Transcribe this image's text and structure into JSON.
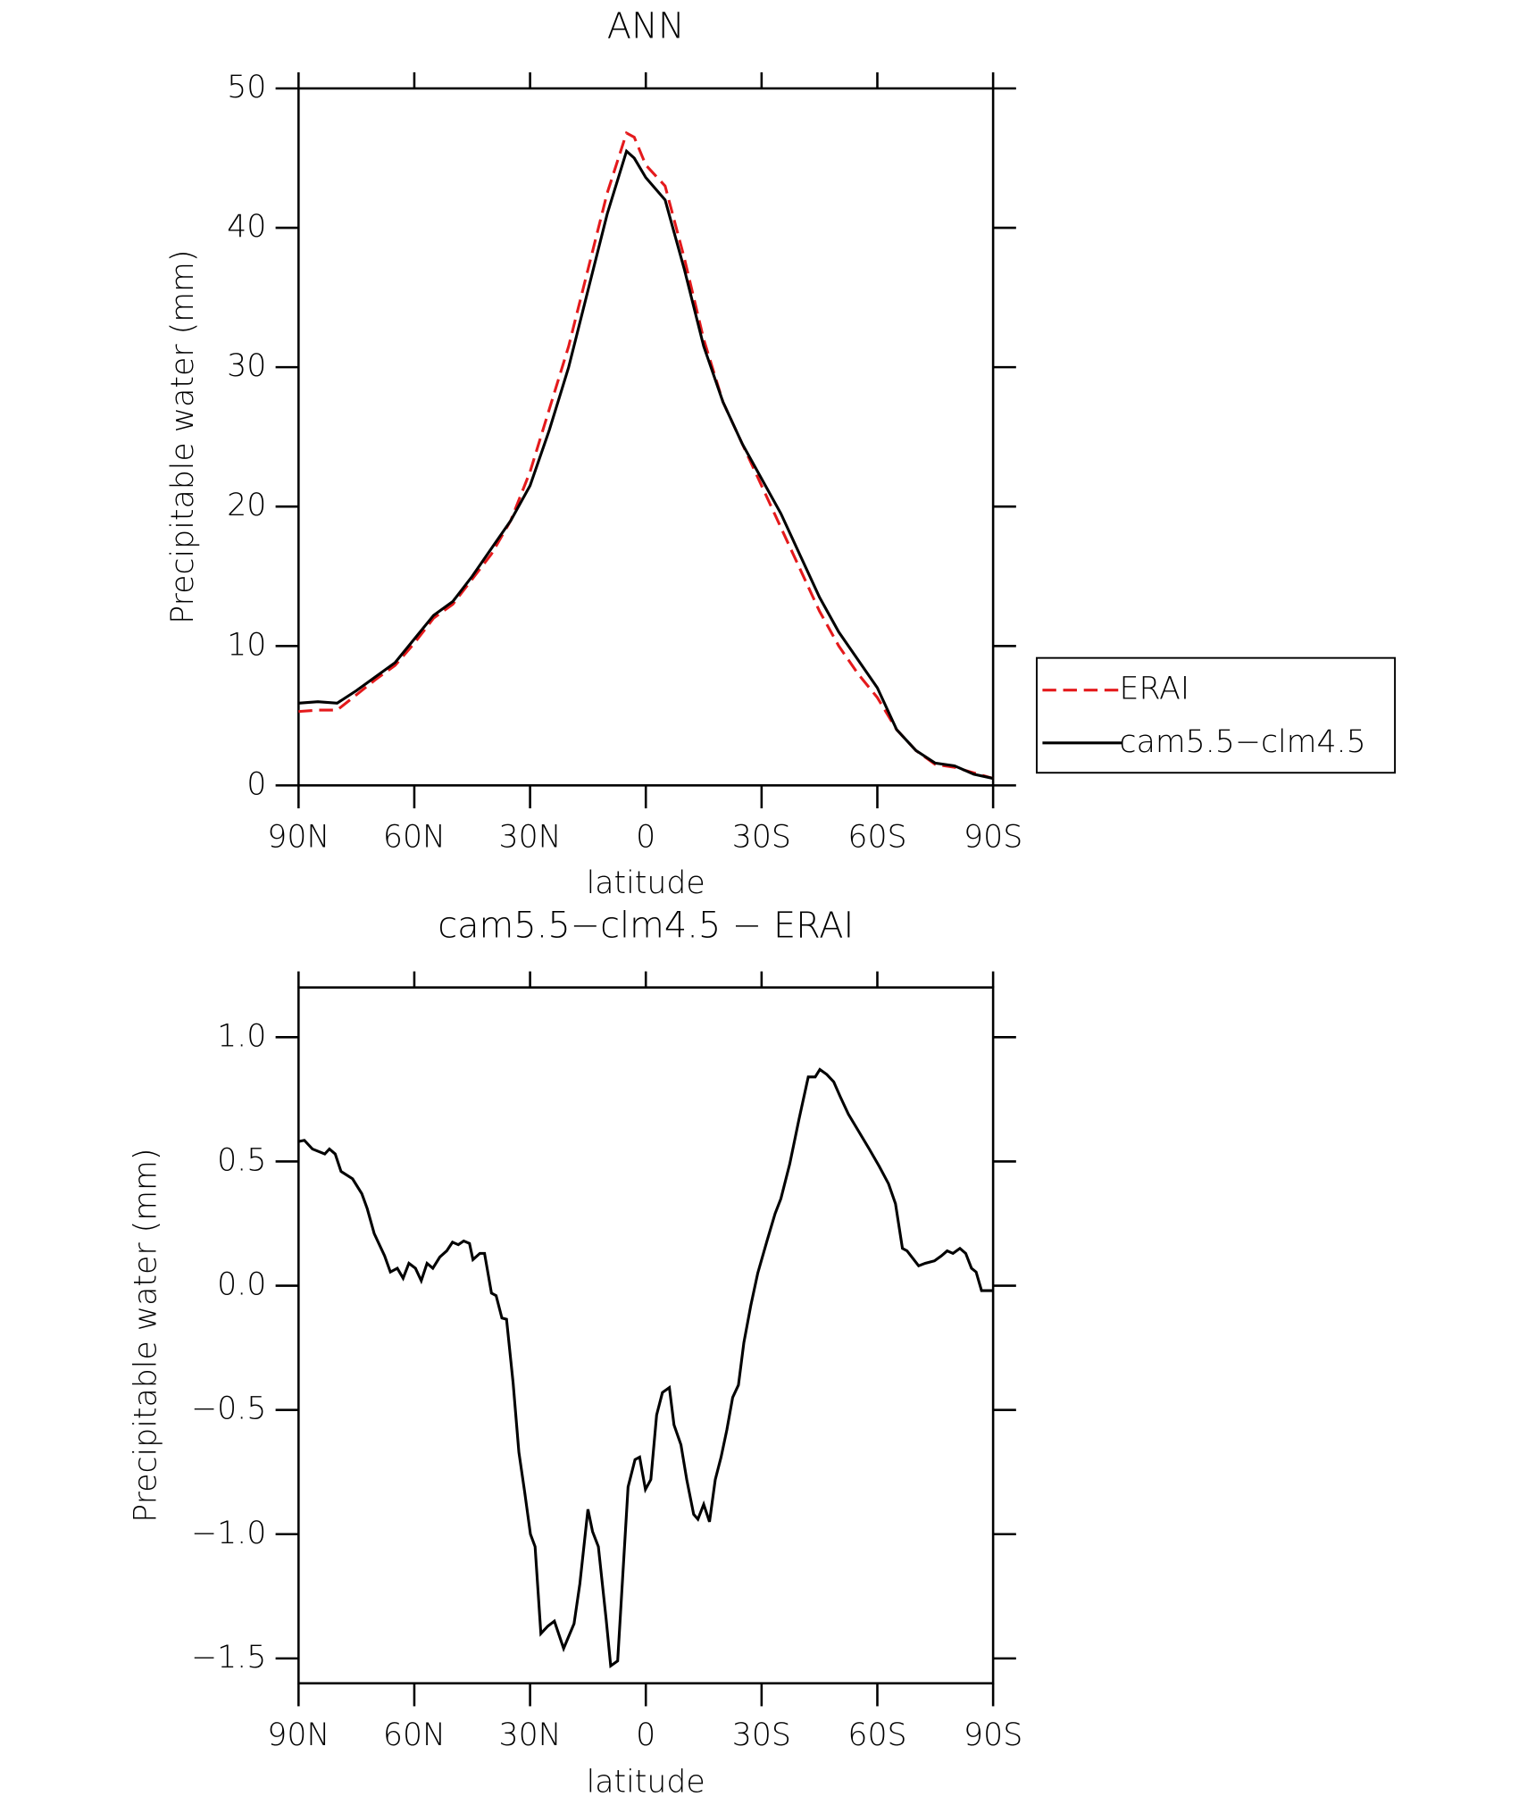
{
  "chart_data": [
    {
      "type": "line",
      "title": "ANN",
      "xlabel": "latitude",
      "ylabel": "Precipitable water (mm)",
      "x": [
        90,
        85,
        80,
        75,
        70,
        65,
        60,
        55,
        50,
        45,
        40,
        35,
        30,
        25,
        20,
        15,
        10,
        5,
        3,
        0,
        -5,
        -10,
        -15,
        -20,
        -25,
        -30,
        -35,
        -40,
        -45,
        -50,
        -55,
        -60,
        -65,
        -70,
        -75,
        -80,
        -85,
        -90
      ],
      "series": [
        {
          "name": "ERAI",
          "color": "#e41a1c",
          "dashed": true,
          "values": [
            5.3,
            5.4,
            5.4,
            6.5,
            7.6,
            8.6,
            10.2,
            12.0,
            13.0,
            14.8,
            16.6,
            19.0,
            22.5,
            27,
            31.5,
            37,
            42.5,
            46.8,
            46.5,
            44.5,
            43,
            37.8,
            32,
            27.5,
            24.5,
            21.5,
            18.5,
            15.5,
            12.5,
            10,
            8,
            6.3,
            4,
            2.5,
            1.5,
            1.3,
            0.9,
            0.5
          ]
        },
        {
          "name": "cam5.5−clm4.5",
          "color": "#000000",
          "dashed": false,
          "values": [
            5.9,
            6.0,
            5.9,
            6.8,
            7.8,
            8.8,
            10.5,
            12.2,
            13.2,
            15.0,
            17.0,
            19.0,
            21.5,
            25.5,
            30,
            35.5,
            41,
            45.5,
            45,
            43.6,
            42,
            37,
            31.5,
            27.5,
            24.5,
            22,
            19.5,
            16.5,
            13.5,
            11,
            9,
            7,
            4,
            2.5,
            1.6,
            1.4,
            0.8,
            0.5
          ]
        }
      ],
      "xlim": [
        90,
        -90
      ],
      "xticks": [
        {
          "value": 90,
          "label": "90N"
        },
        {
          "value": 60,
          "label": "60N"
        },
        {
          "value": 30,
          "label": "30N"
        },
        0,
        {
          "value": -30,
          "label": "30S"
        },
        {
          "value": -60,
          "label": "60S"
        },
        {
          "value": -90,
          "label": "90S"
        }
      ],
      "ylim": [
        0,
        50
      ],
      "yticks": [
        0,
        10,
        20,
        30,
        40,
        50
      ],
      "legend": "right"
    },
    {
      "type": "line",
      "title": "cam5.5−clm4.5 − ERAI",
      "xlabel": "latitude",
      "ylabel": "Precipitable water (mm)",
      "x": [
        90,
        88.5,
        86.4,
        83.2,
        82,
        80.5,
        79,
        76,
        73.6,
        72.2,
        70.4,
        67.7,
        66.2,
        64.4,
        62.9,
        61.4,
        59.7,
        58.2,
        56.7,
        55.2,
        53.4,
        51.6,
        50.1,
        48.6,
        47.2,
        45.7,
        44.8,
        43,
        41.8,
        40,
        38.8,
        37.3,
        36.1,
        34.4,
        32.9,
        31.4,
        29.9,
        28.7,
        27.2,
        25.4,
        23.7,
        21.3,
        18.6,
        17.1,
        15,
        13.8,
        12.3,
        10.3,
        9.1,
        7.3,
        4.6,
        2.8,
        1.6,
        0.1,
        -1.3,
        -2.8,
        -4.3,
        -6.1,
        -7.3,
        -9.1,
        -10.6,
        -12.4,
        -13.5,
        -15,
        -16.5,
        -18,
        -19.5,
        -21,
        -22.5,
        -24,
        -25.4,
        -27.2,
        -29,
        -31.4,
        -33.5,
        -35,
        -37.3,
        -39.7,
        -42.1,
        -43.9,
        -45.1,
        -46.9,
        -48.7,
        -50.4,
        -52.5,
        -55.2,
        -57.9,
        -60.5,
        -62.9,
        -64.7,
        -66.5,
        -67.7,
        -70.7,
        -72.4,
        -74.8,
        -76.6,
        -78.1,
        -79.6,
        -81.4,
        -82.9,
        -84.4,
        -85.6,
        -87,
        -90
      ],
      "values": [
        0.58,
        0.585,
        0.55,
        0.53,
        0.55,
        0.53,
        0.46,
        0.43,
        0.37,
        0.31,
        0.21,
        0.12,
        0.055,
        0.07,
        0.03,
        0.09,
        0.07,
        0.02,
        0.09,
        0.07,
        0.115,
        0.14,
        0.175,
        0.165,
        0.18,
        0.17,
        0.105,
        0.13,
        0.13,
        -0.03,
        -0.04,
        -0.13,
        -0.135,
        -0.39,
        -0.67,
        -0.83,
        -1.0,
        -1.05,
        -1.4,
        -1.37,
        -1.35,
        -1.46,
        -1.36,
        -1.2,
        -0.9,
        -0.99,
        -1.05,
        -1.34,
        -1.53,
        -1.51,
        -0.81,
        -0.7,
        -0.69,
        -0.82,
        -0.78,
        -0.52,
        -0.43,
        -0.41,
        -0.56,
        -0.64,
        -0.78,
        -0.92,
        -0.94,
        -0.88,
        -0.95,
        -0.78,
        -0.69,
        -0.58,
        -0.45,
        -0.4,
        -0.23,
        -0.08,
        0.05,
        0.18,
        0.29,
        0.35,
        0.49,
        0.67,
        0.84,
        0.84,
        0.87,
        0.85,
        0.82,
        0.76,
        0.69,
        0.62,
        0.55,
        0.48,
        0.41,
        0.33,
        0.15,
        0.14,
        0.08,
        0.09,
        0.1,
        0.12,
        0.14,
        0.13,
        0.15,
        0.13,
        0.07,
        0.055,
        -0.02,
        -0.02
      ],
      "color": "#000000",
      "xlim": [
        90,
        -90
      ],
      "xticks": [
        {
          "value": 90,
          "label": "90N"
        },
        {
          "value": 60,
          "label": "60N"
        },
        {
          "value": 30,
          "label": "30N"
        },
        0,
        {
          "value": -30,
          "label": "30S"
        },
        {
          "value": -60,
          "label": "60S"
        },
        {
          "value": -90,
          "label": "90S"
        }
      ],
      "ylim": [
        -1.6,
        1.2
      ],
      "yticks": [
        {
          "value": -1.5,
          "label": "−1.5"
        },
        {
          "value": -1.0,
          "label": "−1.0"
        },
        {
          "value": -0.5,
          "label": "−0.5"
        },
        {
          "value": 0,
          "label": "0.0"
        },
        {
          "value": 0.5,
          "label": "0.5"
        },
        {
          "value": 1.0,
          "label": "1.0"
        }
      ]
    }
  ]
}
